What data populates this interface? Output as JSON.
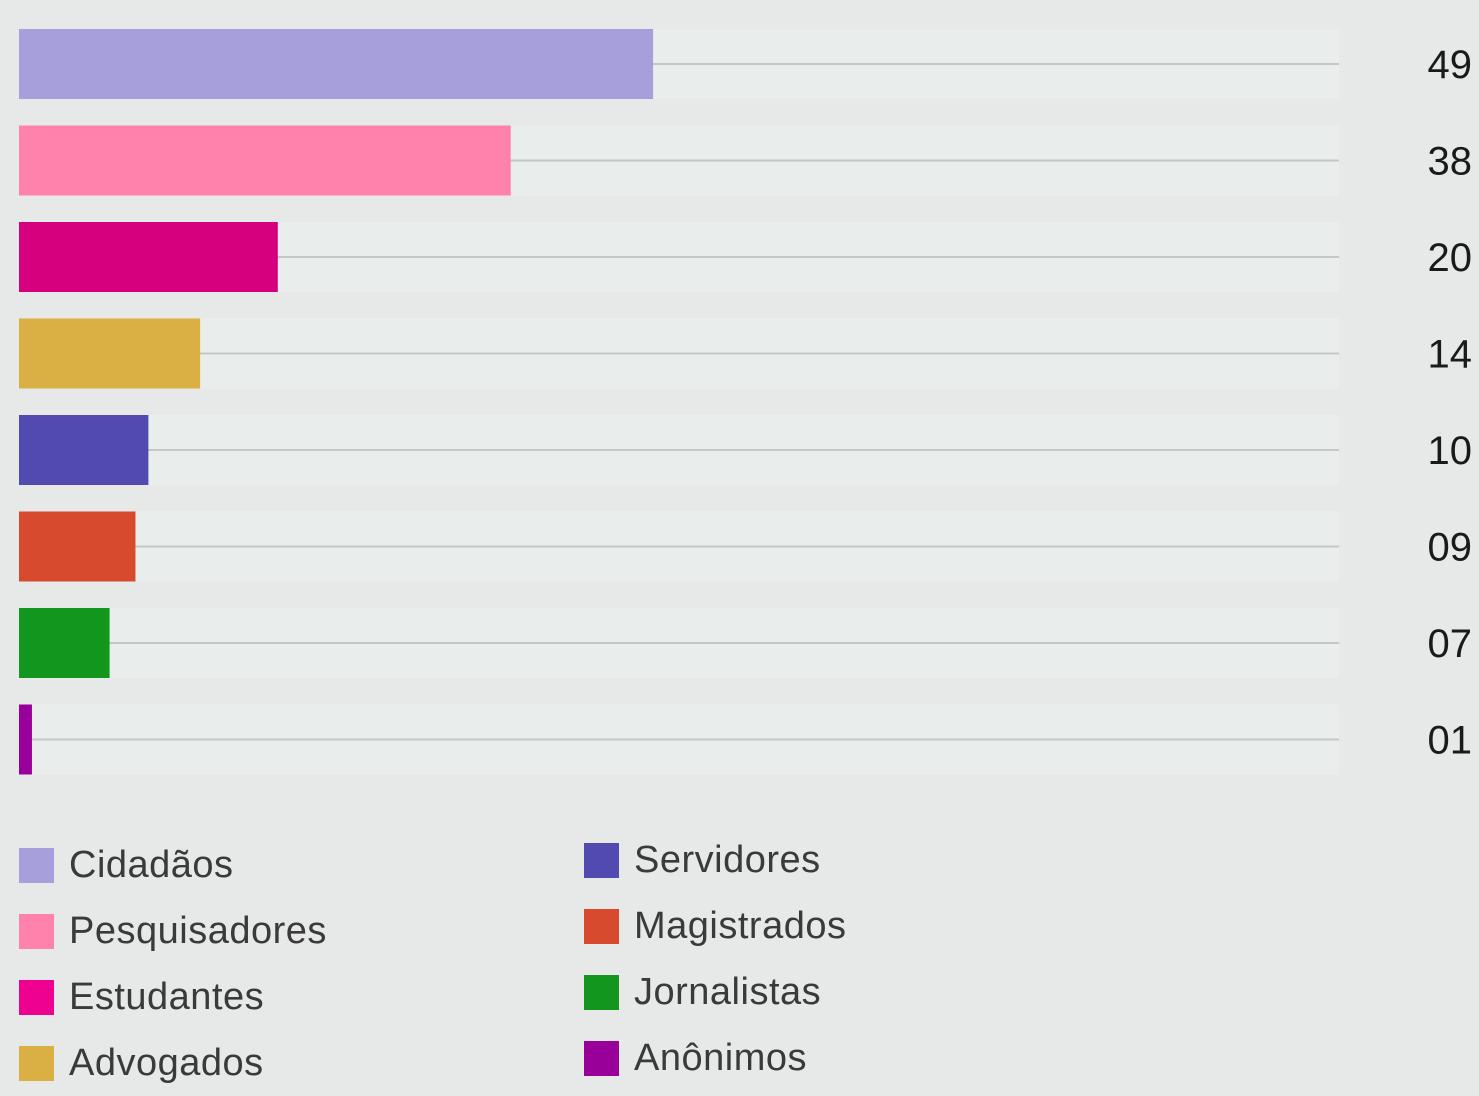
{
  "chart_data": {
    "type": "bar",
    "orientation": "horizontal",
    "categories": [
      "Cidadãos",
      "Pesquisadores",
      "Estudantes",
      "Advogados",
      "Servidores",
      "Magistrados",
      "Jornalistas",
      "Anônimos"
    ],
    "values": [
      49,
      38,
      20,
      14,
      10,
      9,
      7,
      1
    ],
    "value_labels": [
      "49",
      "38",
      "20",
      "14",
      "10",
      "09",
      "07",
      "01"
    ],
    "colors": [
      "#a69fdc",
      "#ff82ac",
      "#d6007f",
      "#dab044",
      "#504ab1",
      "#d84a2e",
      "#13961e",
      "#990099"
    ],
    "xlim": [
      0,
      100
    ],
    "legend_position": "bottom",
    "grid": false
  },
  "legend": {
    "col_a": [
      {
        "label": "Cidadãos",
        "color": "#a69fdc"
      },
      {
        "label": "Pesquisadores",
        "color": "#ff82ac"
      },
      {
        "label": "Estudantes",
        "color": "#ee0090"
      },
      {
        "label": "Advogados",
        "color": "#dab044"
      }
    ],
    "col_b": [
      {
        "label": "Servidores",
        "color": "#504ab1"
      },
      {
        "label": "Magistrados",
        "color": "#d84a2e"
      },
      {
        "label": "Jornalistas",
        "color": "#13961e"
      },
      {
        "label": "Anônimos",
        "color": "#990099"
      }
    ]
  }
}
